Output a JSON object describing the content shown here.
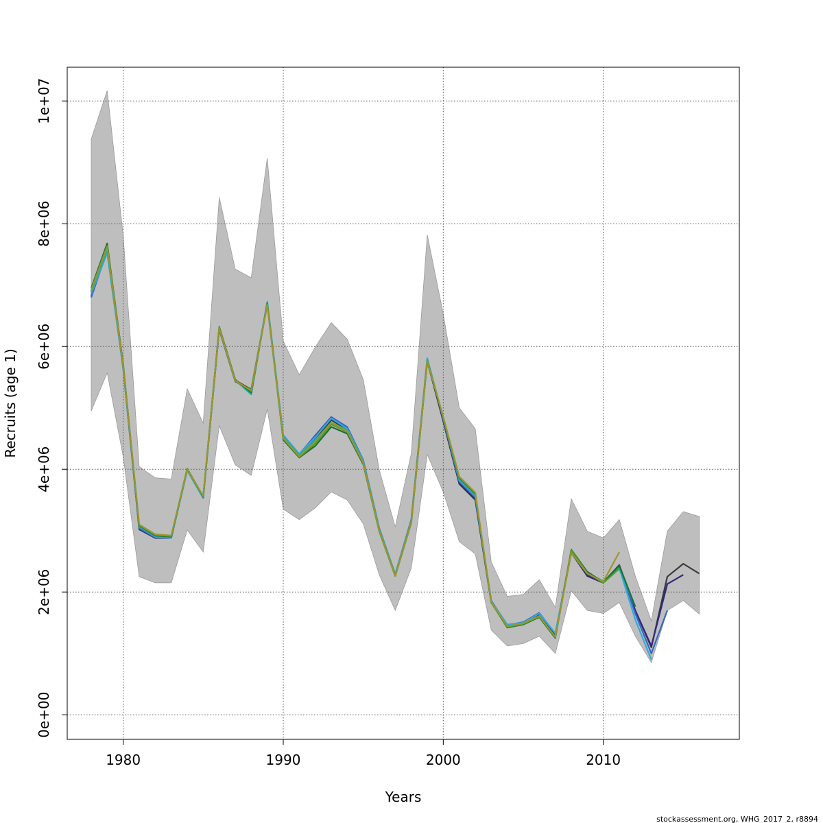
{
  "chart_data": {
    "type": "line",
    "xlabel": "Years",
    "ylabel": "Recruits (age 1)",
    "xlim": [
      1976.5,
      2018.5
    ],
    "ylim": [
      -400000,
      10550000
    ],
    "x_ticks": [
      1980,
      1990,
      2000,
      2010
    ],
    "x_tick_labels": [
      "1980",
      "1990",
      "2000",
      "2010"
    ],
    "y_ticks": [
      0,
      2000000,
      4000000,
      6000000,
      8000000,
      10000000
    ],
    "y_tick_labels": [
      "0e+00",
      "2e+06",
      "4e+06",
      "6e+06",
      "8e+06",
      "1e+07"
    ],
    "grid": true,
    "band_color": "#bebebe",
    "band": {
      "x": [
        1978,
        1979,
        1980,
        1981,
        1982,
        1983,
        1984,
        1985,
        1986,
        1987,
        1988,
        1989,
        1990,
        1991,
        1992,
        1993,
        1994,
        1995,
        1996,
        1997,
        1998,
        1999,
        2000,
        2001,
        2002,
        2003,
        2004,
        2005,
        2006,
        2007,
        2008,
        2009,
        2010,
        2011,
        2012,
        2013,
        2014,
        2015,
        2016
      ],
      "upper": [
        9380000,
        10170000,
        7800000,
        4040000,
        3860000,
        3840000,
        5310000,
        4750000,
        8430000,
        7260000,
        7120000,
        9070000,
        6090000,
        5540000,
        5990000,
        6390000,
        6120000,
        5460000,
        3990000,
        3060000,
        4260000,
        7820000,
        6530000,
        5000000,
        4660000,
        2490000,
        1930000,
        1960000,
        2200000,
        1750000,
        3520000,
        2990000,
        2880000,
        3180000,
        2260000,
        1530000,
        2990000,
        3310000,
        3230000
      ],
      "lower": [
        4950000,
        5570000,
        4200000,
        2250000,
        2150000,
        2150000,
        3010000,
        2650000,
        4710000,
        4070000,
        3900000,
        4980000,
        3350000,
        3180000,
        3370000,
        3630000,
        3500000,
        3110000,
        2280000,
        1700000,
        2390000,
        4240000,
        3630000,
        2820000,
        2620000,
        1380000,
        1120000,
        1160000,
        1280000,
        1000000,
        2020000,
        1700000,
        1650000,
        1830000,
        1280000,
        850000,
        1700000,
        1860000,
        1640000
      ]
    },
    "series": [
      {
        "color": "#3a3a3a",
        "x": [
          1978,
          1979,
          1980,
          1981,
          1982,
          1983,
          1984,
          1985,
          1986,
          1987,
          1988,
          1989,
          1990,
          1991,
          1992,
          1993,
          1994,
          1995,
          1996,
          1997,
          1998,
          1999,
          2000,
          2001,
          2002,
          2003,
          2004,
          2005,
          2006,
          2007,
          2008,
          2009,
          2010,
          2011,
          2012,
          2013,
          2014,
          2015,
          2016
        ],
        "values": [
          6900000,
          7650000,
          5700000,
          3050000,
          2900000,
          2900000,
          4000000,
          3550000,
          6300000,
          5450000,
          5300000,
          6700000,
          4500000,
          4200000,
          4500000,
          4800000,
          4650000,
          4100000,
          3000000,
          2270000,
          3150000,
          5760000,
          4780000,
          3760000,
          3500000,
          1830000,
          1440000,
          1480000,
          1620000,
          1290000,
          2650000,
          2280000,
          2160000,
          2440000,
          1700000,
          1100000,
          2250000,
          2460000,
          2300000
        ]
      },
      {
        "color": "#2e2a7a",
        "x": [
          1978,
          1979,
          1980,
          1981,
          1982,
          1983,
          1984,
          1985,
          1986,
          1987,
          1988,
          1989,
          1990,
          1991,
          1992,
          1993,
          1994,
          1995,
          1996,
          1997,
          1998,
          1999,
          2000,
          2001,
          2002,
          2003,
          2004,
          2005,
          2006,
          2007,
          2008,
          2009,
          2010,
          2011,
          2012,
          2013,
          2014,
          2015
        ],
        "values": [
          6820000,
          7600000,
          5650000,
          3020000,
          2880000,
          2880000,
          3990000,
          3540000,
          6280000,
          5430000,
          5280000,
          6690000,
          4520000,
          4240000,
          4550000,
          4850000,
          4680000,
          4130000,
          3020000,
          2280000,
          3170000,
          5780000,
          4800000,
          3780000,
          3520000,
          1840000,
          1450000,
          1490000,
          1640000,
          1300000,
          2640000,
          2260000,
          2150000,
          2430000,
          1700000,
          1120000,
          2130000,
          2280000
        ]
      },
      {
        "color": "#3a66c4",
        "x": [
          1978,
          1979,
          1980,
          1981,
          1982,
          1983,
          1984,
          1985,
          1986,
          1987,
          1988,
          1989,
          1990,
          1991,
          1992,
          1993,
          1994,
          1995,
          1996,
          1997,
          1998,
          1999,
          2000,
          2001,
          2002,
          2003,
          2004,
          2005,
          2006,
          2007,
          2008,
          2009,
          2010,
          2011,
          2012,
          2013,
          2014
        ],
        "values": [
          6800000,
          7560000,
          5630000,
          3040000,
          2890000,
          2890000,
          3990000,
          3540000,
          6290000,
          5440000,
          5260000,
          6720000,
          4540000,
          4250000,
          4540000,
          4850000,
          4690000,
          4150000,
          3040000,
          2290000,
          3180000,
          5800000,
          4820000,
          3800000,
          3540000,
          1860000,
          1460000,
          1510000,
          1660000,
          1320000,
          2660000,
          2300000,
          2170000,
          2420000,
          1650000,
          1000000,
          1700000
        ]
      },
      {
        "color": "#33aadd",
        "x": [
          1978,
          1979,
          1980,
          1981,
          1982,
          1983,
          1984,
          1985,
          1986,
          1987,
          1988,
          1989,
          1990,
          1991,
          1992,
          1993,
          1994,
          1995,
          1996,
          1997,
          1998,
          1999,
          2000,
          2001,
          2002,
          2003,
          2004,
          2005,
          2006,
          2007,
          2008,
          2009,
          2010,
          2011,
          2012,
          2013
        ],
        "values": [
          6860000,
          7520000,
          5640000,
          3060000,
          2900000,
          2880000,
          3980000,
          3530000,
          6300000,
          5440000,
          5240000,
          6730000,
          4560000,
          4250000,
          4520000,
          4830000,
          4660000,
          4140000,
          3030000,
          2290000,
          3160000,
          5810000,
          4830000,
          3820000,
          3560000,
          1850000,
          1470000,
          1500000,
          1650000,
          1330000,
          2650000,
          2310000,
          2180000,
          2390000,
          1550000,
          900000
        ]
      },
      {
        "color": "#2aa89a",
        "x": [
          1978,
          1979,
          1980,
          1981,
          1982,
          1983,
          1984,
          1985,
          1986,
          1987,
          1988,
          1989,
          1990,
          1991,
          1992,
          1993,
          1994,
          1995,
          1996,
          1997,
          1998,
          1999,
          2000,
          2001,
          2002,
          2003,
          2004,
          2005,
          2006,
          2007,
          2008,
          2009,
          2010,
          2011,
          2012
        ],
        "values": [
          6880000,
          7580000,
          5660000,
          3070000,
          2910000,
          2900000,
          3990000,
          3540000,
          6310000,
          5450000,
          5220000,
          6710000,
          4530000,
          4230000,
          4480000,
          4760000,
          4640000,
          4120000,
          3020000,
          2280000,
          3150000,
          5780000,
          4840000,
          3840000,
          3580000,
          1840000,
          1430000,
          1480000,
          1600000,
          1270000,
          2660000,
          2330000,
          2150000,
          2380000,
          1760000
        ]
      },
      {
        "color": "#1d6e3a",
        "x": [
          1978,
          1979,
          1980,
          1981,
          1982,
          1983,
          1984,
          1985,
          1986,
          1987,
          1988,
          1989,
          1990,
          1991,
          1992,
          1993,
          1994,
          1995,
          1996,
          1997,
          1998,
          1999,
          2000,
          2001,
          2002,
          2003,
          2004,
          2005,
          2006,
          2007,
          2008,
          2009,
          2010,
          2011,
          2012
        ],
        "values": [
          6950000,
          7680000,
          5680000,
          3080000,
          2920000,
          2900000,
          4010000,
          3550000,
          6320000,
          5460000,
          5250000,
          6700000,
          4480000,
          4190000,
          4380000,
          4690000,
          4580000,
          4080000,
          2990000,
          2260000,
          3130000,
          5760000,
          4840000,
          3860000,
          3600000,
          1830000,
          1420000,
          1470000,
          1590000,
          1250000,
          2690000,
          2330000,
          2160000,
          2430000,
          1760000
        ]
      },
      {
        "color": "#4e9e2a",
        "x": [
          1978,
          1979,
          1980,
          1981,
          1982,
          1983,
          1984,
          1985,
          1986,
          1987,
          1988,
          1989,
          1990,
          1991,
          1992,
          1993,
          1994,
          1995,
          1996,
          1997,
          1998,
          1999,
          2000,
          2001,
          2002,
          2003,
          2004,
          2005,
          2006,
          2007,
          2008,
          2009,
          2010,
          2011
        ],
        "values": [
          6930000,
          7640000,
          5670000,
          3090000,
          2930000,
          2910000,
          4010000,
          3560000,
          6310000,
          5450000,
          5270000,
          6690000,
          4500000,
          4200000,
          4420000,
          4730000,
          4610000,
          4100000,
          3000000,
          2260000,
          3140000,
          5770000,
          4850000,
          3870000,
          3610000,
          1830000,
          1430000,
          1480000,
          1600000,
          1260000,
          2680000,
          2310000,
          2150000,
          2380000
        ]
      },
      {
        "color": "#9b9530",
        "x": [
          1978,
          1979,
          1980,
          1981,
          1982,
          1983,
          1984,
          1985,
          1986,
          1987,
          1988,
          1989,
          1990,
          1991,
          1992,
          1993,
          1994,
          1995,
          1996,
          1997,
          1998,
          1999,
          2000,
          2001,
          2002,
          2003,
          2004,
          2005,
          2006,
          2007,
          2008,
          2009,
          2010,
          2011
        ],
        "values": [
          6910000,
          7620000,
          5670000,
          3100000,
          2940000,
          2920000,
          4000000,
          3560000,
          6300000,
          5440000,
          5290000,
          6680000,
          4510000,
          4210000,
          4450000,
          4760000,
          4620000,
          4100000,
          3000000,
          2260000,
          3140000,
          5760000,
          4850000,
          3880000,
          3620000,
          1840000,
          1440000,
          1490000,
          1610000,
          1270000,
          2640000,
          2300000,
          2170000,
          2650000
        ]
      }
    ]
  },
  "footer": "stockassessment.org, WHG_2017_2, r8894"
}
